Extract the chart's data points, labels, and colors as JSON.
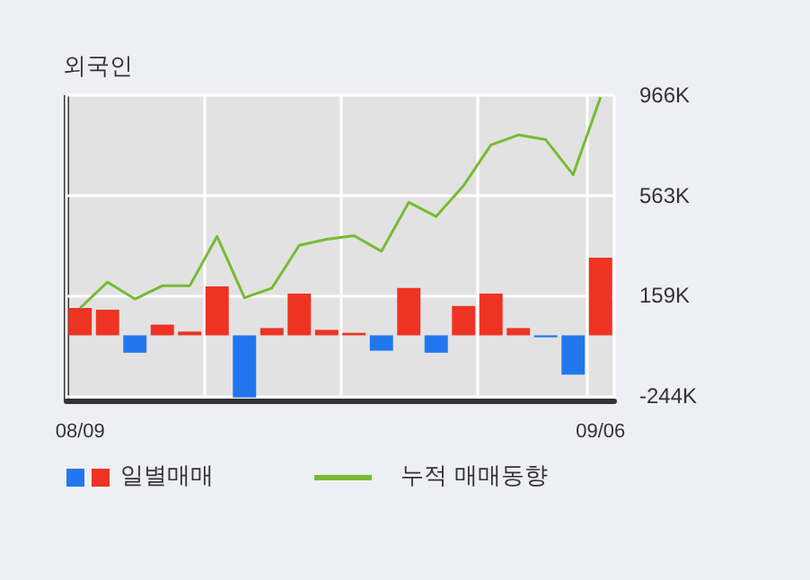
{
  "chart_data": {
    "type": "bar",
    "title": "외국인",
    "categories": [
      "08/09",
      null,
      null,
      null,
      null,
      null,
      null,
      null,
      null,
      null,
      null,
      null,
      null,
      null,
      null,
      null,
      null,
      null,
      null,
      "09/06"
    ],
    "series": [
      {
        "name": "일별매매",
        "colors": [
          "#ee3322",
          "#ee3322",
          "#2277ee",
          "#ee3322",
          "#ee3322",
          "#ee3322",
          "#2277ee",
          "#ee3322",
          "#ee3322",
          "#ee3322",
          "#ee3322",
          "#2277ee",
          "#ee3322",
          "#2277ee",
          "#ee3322",
          "#ee3322",
          "#ee3322",
          "#2277ee",
          "#2277ee",
          "#ee3322"
        ],
        "values": [
          110,
          103,
          -70,
          43,
          15,
          197,
          -250,
          29,
          168,
          22,
          10,
          -62,
          190,
          -70,
          118,
          168,
          29,
          -8,
          -158,
          312
        ]
      },
      {
        "name": "누적 매매동향",
        "type": "line",
        "color": "#77bb33",
        "values": [
          110,
          214,
          146,
          199,
          199,
          398,
          151,
          190,
          362,
          386,
          401,
          338,
          535,
          478,
          602,
          766,
          806,
          787,
          646,
          958
        ]
      }
    ],
    "ylim": [
      -262,
      966
    ],
    "yticks": [
      {
        "value": -244,
        "label": "-244K"
      },
      {
        "value": 159,
        "label": "159K"
      },
      {
        "value": 563,
        "label": "563K"
      },
      {
        "value": 966,
        "label": "966K"
      }
    ],
    "grid": true,
    "legend": "bottom",
    "marker": "none"
  }
}
